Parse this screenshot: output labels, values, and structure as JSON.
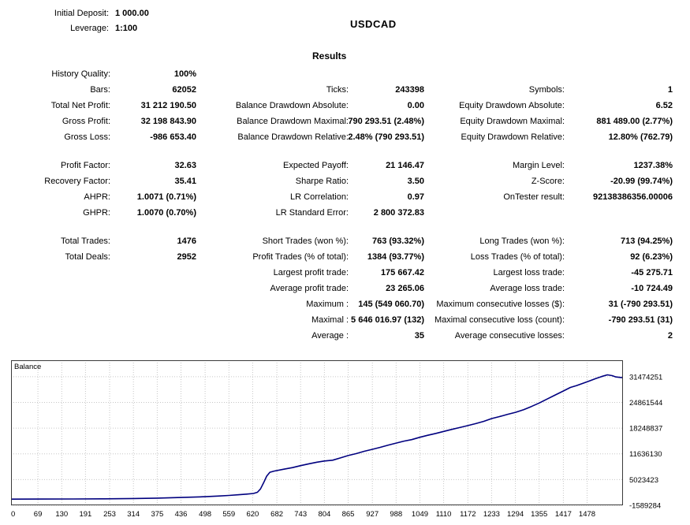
{
  "header": {
    "initial_deposit_label": "Initial Deposit:",
    "initial_deposit_value": "1 000.00",
    "leverage_label": "Leverage:",
    "leverage_value": "1:100",
    "symbol": "USDCAD",
    "results_title": "Results"
  },
  "stats": {
    "groups": [
      {
        "rows": [
          [
            "History Quality:",
            "100%",
            "",
            "",
            "",
            ""
          ],
          [
            "Bars:",
            "62052",
            "Ticks:",
            "243398",
            "Symbols:",
            "1"
          ],
          [
            "Total Net Profit:",
            "31 212 190.50",
            "Balance Drawdown Absolute:",
            "0.00",
            "Equity Drawdown Absolute:",
            "6.52"
          ],
          [
            "Gross Profit:",
            "32 198 843.90",
            "Balance Drawdown Maximal:",
            "790 293.51 (2.48%)",
            "Equity Drawdown Maximal:",
            "881 489.00 (2.77%)"
          ],
          [
            "Gross Loss:",
            "-986 653.40",
            "Balance Drawdown Relative:",
            "2.48% (790 293.51)",
            "Equity Drawdown Relative:",
            "12.80% (762.79)"
          ]
        ]
      },
      {
        "rows": [
          [
            "Profit Factor:",
            "32.63",
            "Expected Payoff:",
            "21 146.47",
            "Margin Level:",
            "1237.38%"
          ],
          [
            "Recovery Factor:",
            "35.41",
            "Sharpe Ratio:",
            "3.50",
            "Z-Score:",
            "-20.99 (99.74%)"
          ],
          [
            "AHPR:",
            "1.0071 (0.71%)",
            "LR Correlation:",
            "0.97",
            "OnTester result:",
            "92138386356.00006"
          ],
          [
            "GHPR:",
            "1.0070 (0.70%)",
            "LR Standard Error:",
            "2 800 372.83",
            "",
            ""
          ]
        ]
      },
      {
        "rows": [
          [
            "Total Trades:",
            "1476",
            "Short Trades (won %):",
            "763 (93.32%)",
            "Long Trades (won %):",
            "713 (94.25%)"
          ],
          [
            "Total Deals:",
            "2952",
            "Profit Trades (% of total):",
            "1384 (93.77%)",
            "Loss Trades (% of total):",
            "92 (6.23%)"
          ],
          [
            "",
            "",
            "Largest profit trade:",
            "175 667.42",
            "Largest loss trade:",
            "-45 275.71"
          ],
          [
            "",
            "",
            "Average profit trade:",
            "23 265.06",
            "Average loss trade:",
            "-10 724.49"
          ],
          [
            "",
            "",
            "Maximum :",
            "145 (549 060.70)",
            "Maximum consecutive losses ($):",
            "31 (-790 293.51)"
          ],
          [
            "",
            "",
            "Maximal :",
            "5 646 016.97 (132)",
            "Maximal consecutive loss (count):",
            "-790 293.51 (31)"
          ],
          [
            "",
            "",
            "Average :",
            "35",
            "Average consecutive losses:",
            "2"
          ]
        ]
      }
    ]
  },
  "chart_data": {
    "type": "line",
    "legend": "Balance",
    "series_name": "Balance",
    "line_color": "#00007f",
    "x_ticks": [
      0,
      69,
      130,
      191,
      253,
      314,
      375,
      436,
      498,
      559,
      620,
      682,
      743,
      804,
      865,
      927,
      988,
      1049,
      1110,
      1172,
      1233,
      1294,
      1355,
      1417,
      1478
    ],
    "y_ticks": [
      -1589284,
      5023423,
      11636130,
      18248837,
      24861544,
      31474251
    ],
    "x_range": [
      0,
      1570
    ],
    "y_range": [
      -1589284,
      35700000
    ],
    "final_balance": 31213190.5,
    "points": [
      [
        0,
        1000
      ],
      [
        80,
        10000
      ],
      [
        160,
        35000
      ],
      [
        240,
        80000
      ],
      [
        314,
        160000
      ],
      [
        375,
        260000
      ],
      [
        436,
        420000
      ],
      [
        498,
        620000
      ],
      [
        530,
        780000
      ],
      [
        559,
        950000
      ],
      [
        585,
        1120000
      ],
      [
        605,
        1280000
      ],
      [
        622,
        1450000
      ],
      [
        632,
        1750000
      ],
      [
        640,
        2600000
      ],
      [
        648,
        4200000
      ],
      [
        656,
        5900000
      ],
      [
        664,
        6900000
      ],
      [
        675,
        7200000
      ],
      [
        700,
        7700000
      ],
      [
        722,
        8100000
      ],
      [
        743,
        8600000
      ],
      [
        765,
        9100000
      ],
      [
        785,
        9500000
      ],
      [
        804,
        9800000
      ],
      [
        825,
        10000000
      ],
      [
        845,
        10600000
      ],
      [
        865,
        11200000
      ],
      [
        886,
        11700000
      ],
      [
        906,
        12300000
      ],
      [
        927,
        12800000
      ],
      [
        947,
        13300000
      ],
      [
        968,
        13900000
      ],
      [
        988,
        14400000
      ],
      [
        1008,
        14900000
      ],
      [
        1028,
        15300000
      ],
      [
        1049,
        15900000
      ],
      [
        1069,
        16400000
      ],
      [
        1090,
        16900000
      ],
      [
        1110,
        17400000
      ],
      [
        1130,
        17900000
      ],
      [
        1151,
        18400000
      ],
      [
        1172,
        18900000
      ],
      [
        1192,
        19400000
      ],
      [
        1213,
        20000000
      ],
      [
        1233,
        20700000
      ],
      [
        1253,
        21200000
      ],
      [
        1274,
        21800000
      ],
      [
        1294,
        22300000
      ],
      [
        1315,
        23000000
      ],
      [
        1335,
        23800000
      ],
      [
        1355,
        24700000
      ],
      [
        1375,
        25700000
      ],
      [
        1395,
        26700000
      ],
      [
        1417,
        27800000
      ],
      [
        1435,
        28700000
      ],
      [
        1451,
        29200000
      ],
      [
        1468,
        29800000
      ],
      [
        1484,
        30400000
      ],
      [
        1500,
        31000000
      ],
      [
        1515,
        31500000
      ],
      [
        1530,
        31950000
      ],
      [
        1542,
        31750000
      ],
      [
        1552,
        31400000
      ],
      [
        1568,
        31213190
      ]
    ]
  }
}
